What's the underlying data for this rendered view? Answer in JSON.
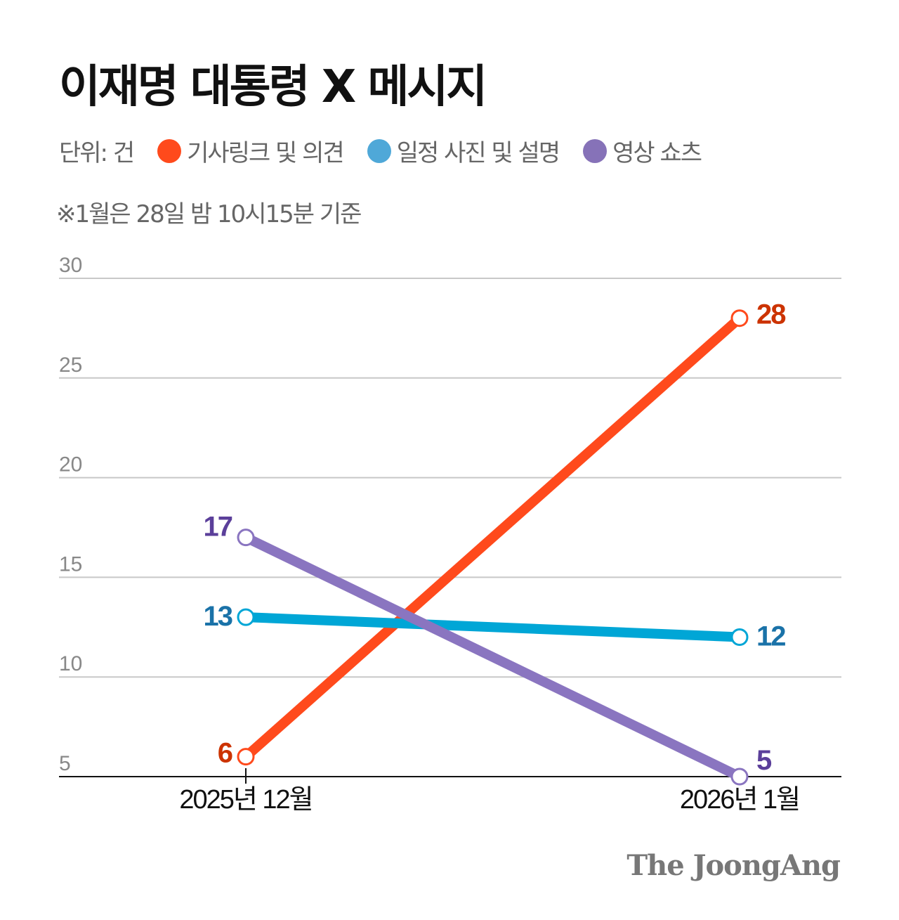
{
  "title": "이재명 대통령 X 메시지",
  "unit_label": "단위: 건",
  "note": "※1월은 28일 밤 10시15분 기준",
  "logo": "The JoongAng",
  "chart_data": {
    "type": "line",
    "title": "이재명 대통령 X 메시지",
    "categories": [
      "2025년 12월",
      "2026년 1월"
    ],
    "ylim": [
      5,
      30
    ],
    "yticks": [
      5,
      10,
      15,
      20,
      25,
      30
    ],
    "grid": true,
    "legend_position": "top-left",
    "series": [
      {
        "name": "기사링크 및 의견",
        "values": [
          6,
          28
        ],
        "color": "#ff4a1c",
        "label_color": "#cc3300",
        "legend_color": "#ff4a1c"
      },
      {
        "name": "일정 사진 및 설명",
        "values": [
          13,
          12
        ],
        "color": "#00a6d6",
        "label_color": "#1a72a8",
        "legend_color": "#4fa8d8"
      },
      {
        "name": "영상 쇼츠",
        "values": [
          17,
          5
        ],
        "color": "#8a75c0",
        "label_color": "#5b3f9a",
        "legend_color": "#8672b8"
      }
    ]
  }
}
